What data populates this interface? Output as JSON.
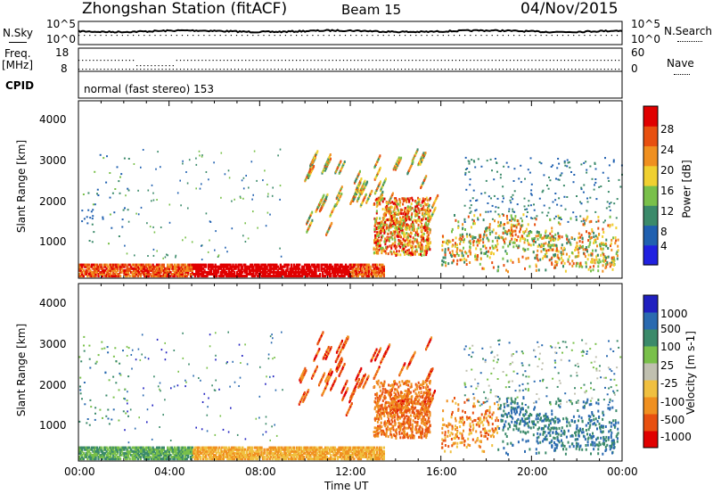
{
  "header": {
    "station": "Zhongshan Station (fitACF)",
    "beam": "Beam 15",
    "date": "04/Nov/2015"
  },
  "top_panels": {
    "nsky_label": "N.Sky",
    "nsky_ticks": [
      "10^5",
      "10^0"
    ],
    "nsearch_ticks": [
      "10^5",
      "10^0"
    ],
    "nsearch_label": "N.Search",
    "freq_label_line1": "Freq.",
    "freq_label_line2": "[MHz]",
    "freq_ticks": [
      "18",
      "8"
    ],
    "nave_ticks": [
      "60",
      "0"
    ],
    "nave_label": "Nave",
    "cpid_label": "CPID",
    "cpid_text": "normal (fast stereo) 153"
  },
  "chart_data": [
    {
      "type": "heatmap",
      "name": "power",
      "ylabel": "Slant Range [km]",
      "yticks": [
        "4000",
        "3000",
        "2000",
        "1000"
      ],
      "ylim": [
        180,
        4500
      ],
      "colorbar_label": "Power [dB]",
      "colorbar_ticks": [
        "28",
        "24",
        "20",
        "16",
        "12",
        "8",
        "4"
      ],
      "colorbar_colors": [
        "#2020e0",
        "#2060b0",
        "#3b8a6a",
        "#79c04a",
        "#f0d030",
        "#f09020",
        "#e85010",
        "#e00000"
      ]
    },
    {
      "type": "heatmap",
      "name": "velocity",
      "ylabel": "Slant Range [km]",
      "yticks": [
        "4000",
        "3000",
        "2000",
        "1000"
      ],
      "ylim": [
        180,
        4500
      ],
      "colorbar_label": "Velocity [m s-1]",
      "colorbar_ticks": [
        "1000",
        "500",
        "100",
        "25",
        "-25",
        "-100",
        "-500",
        "-1000"
      ],
      "colorbar_colors": [
        "#e00000",
        "#e85010",
        "#f09020",
        "#f0c040",
        "#c0c0b0",
        "#79c04a",
        "#3b8a6a",
        "#2a6ab0",
        "#2020c0"
      ]
    }
  ],
  "xaxis": {
    "ticks": [
      "00:00",
      "04:00",
      "08:00",
      "12:00",
      "16:00",
      "20:00",
      "00:00"
    ],
    "label": "Time UT"
  }
}
